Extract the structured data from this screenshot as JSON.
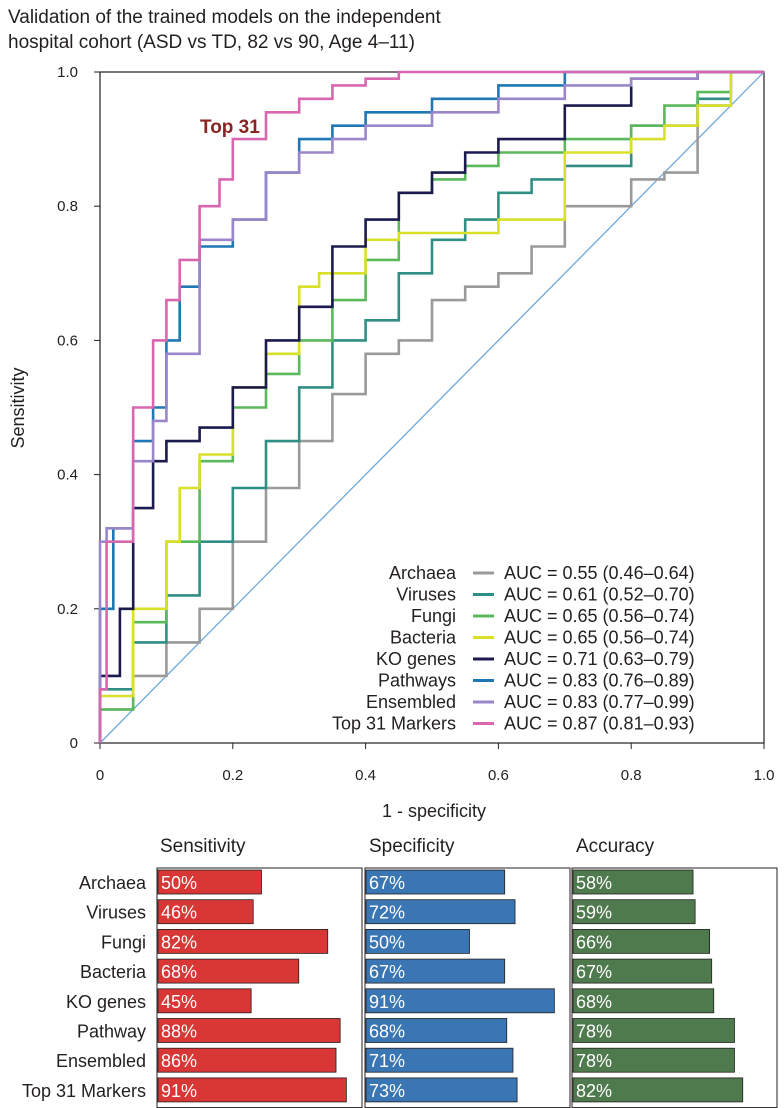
{
  "chart_data": [
    {
      "type": "line",
      "title": "Validation of the trained models on the independent hospital cohort  (ASD vs TD, 82 vs 90, Age 4–11)",
      "title_lines": [
        "Validation of the trained models on the independent",
        "hospital cohort  (ASD vs TD, 82 vs 90, Age 4–11)"
      ],
      "xlabel": "1 - specificity",
      "ylabel": "Sensitivity",
      "xlim": [
        0,
        1
      ],
      "ylim": [
        0,
        1
      ],
      "x_ticks": [
        "0",
        "0.2",
        "0.4",
        "0.6",
        "0.8",
        "1.0"
      ],
      "y_ticks": [
        "0",
        "0.2",
        "0.4",
        "0.6",
        "0.8",
        "1.0"
      ],
      "annotation": "Top 31",
      "reference_line": {
        "x": [
          0,
          1
        ],
        "y": [
          0,
          1
        ],
        "color": "#6fa8dc"
      },
      "series": [
        {
          "name": "Archaea",
          "auc_label": "AUC = 0.55 (0.46–0.64)",
          "color": "#9a9a9a",
          "x": [
            0,
            0.05,
            0.1,
            0.15,
            0.2,
            0.25,
            0.3,
            0.35,
            0.4,
            0.45,
            0.5,
            0.55,
            0.6,
            0.65,
            0.7,
            0.8,
            0.85,
            0.9,
            0.95,
            1.0
          ],
          "y": [
            0,
            0.05,
            0.1,
            0.15,
            0.2,
            0.3,
            0.38,
            0.45,
            0.52,
            0.58,
            0.6,
            0.66,
            0.68,
            0.7,
            0.74,
            0.8,
            0.84,
            0.85,
            0.95,
            1.0
          ]
        },
        {
          "name": "Viruses",
          "auc_label": "AUC = 0.61 (0.52–0.70)",
          "color": "#2f8f84",
          "x": [
            0,
            0.05,
            0.1,
            0.15,
            0.2,
            0.25,
            0.3,
            0.35,
            0.4,
            0.45,
            0.5,
            0.55,
            0.6,
            0.65,
            0.7,
            0.8,
            0.9,
            0.95,
            1.0
          ],
          "y": [
            0,
            0.08,
            0.15,
            0.22,
            0.3,
            0.38,
            0.45,
            0.53,
            0.6,
            0.63,
            0.7,
            0.75,
            0.78,
            0.82,
            0.84,
            0.86,
            0.92,
            0.96,
            1.0
          ]
        },
        {
          "name": "Fungi",
          "auc_label": "AUC = 0.65 (0.56–0.74)",
          "color": "#5bb85d",
          "x": [
            0,
            0.05,
            0.1,
            0.15,
            0.2,
            0.25,
            0.3,
            0.35,
            0.4,
            0.45,
            0.5,
            0.55,
            0.6,
            0.7,
            0.8,
            0.85,
            0.9,
            0.95,
            1.0
          ],
          "y": [
            0,
            0.05,
            0.18,
            0.3,
            0.42,
            0.5,
            0.55,
            0.6,
            0.66,
            0.72,
            0.82,
            0.84,
            0.86,
            0.88,
            0.9,
            0.92,
            0.95,
            0.97,
            1.0
          ]
        },
        {
          "name": "Bacteria",
          "auc_label": "AUC = 0.65 (0.56–0.74)",
          "color": "#d8e02a",
          "x": [
            0,
            0.05,
            0.1,
            0.12,
            0.15,
            0.2,
            0.25,
            0.3,
            0.33,
            0.4,
            0.45,
            0.5,
            0.6,
            0.7,
            0.8,
            0.85,
            0.9,
            0.95,
            1.0
          ],
          "y": [
            0,
            0.07,
            0.2,
            0.3,
            0.38,
            0.43,
            0.53,
            0.58,
            0.68,
            0.7,
            0.75,
            0.76,
            0.76,
            0.78,
            0.88,
            0.9,
            0.92,
            0.95,
            1.0
          ]
        },
        {
          "name": "KO genes",
          "auc_label": "AUC = 0.71 (0.63–0.79)",
          "color": "#1c1a4e",
          "x": [
            0,
            0.03,
            0.05,
            0.08,
            0.1,
            0.15,
            0.2,
            0.25,
            0.3,
            0.35,
            0.4,
            0.45,
            0.5,
            0.55,
            0.6,
            0.7,
            0.8,
            0.9,
            1.0
          ],
          "y": [
            0,
            0.1,
            0.2,
            0.35,
            0.42,
            0.45,
            0.47,
            0.53,
            0.6,
            0.65,
            0.74,
            0.78,
            0.82,
            0.85,
            0.88,
            0.9,
            0.95,
            0.99,
            1.0
          ]
        },
        {
          "name": "Pathways",
          "auc_label": "AUC = 0.83 (0.76–0.89)",
          "color": "#1f77b4",
          "x": [
            0,
            0.02,
            0.05,
            0.08,
            0.1,
            0.12,
            0.15,
            0.2,
            0.25,
            0.3,
            0.35,
            0.4,
            0.5,
            0.6,
            0.7,
            0.8,
            0.9,
            1.0
          ],
          "y": [
            0,
            0.2,
            0.32,
            0.45,
            0.5,
            0.6,
            0.68,
            0.74,
            0.78,
            0.85,
            0.9,
            0.92,
            0.94,
            0.96,
            0.98,
            1.0,
            1.0,
            1.0
          ]
        },
        {
          "name": "Ensembled",
          "auc_label": "AUC = 0.83 (0.77–0.99)",
          "color": "#9b86c9",
          "x": [
            0,
            0.01,
            0.05,
            0.08,
            0.1,
            0.15,
            0.2,
            0.25,
            0.3,
            0.35,
            0.4,
            0.5,
            0.6,
            0.7,
            0.8,
            0.9,
            1.0
          ],
          "y": [
            0,
            0.3,
            0.32,
            0.42,
            0.48,
            0.58,
            0.75,
            0.78,
            0.85,
            0.88,
            0.9,
            0.92,
            0.94,
            0.96,
            0.98,
            0.99,
            1.0
          ]
        },
        {
          "name": "Top 31 Markers",
          "auc_label": "AUC = 0.87 (0.81–0.93)",
          "color": "#d867b0",
          "x": [
            0,
            0.01,
            0.05,
            0.08,
            0.1,
            0.12,
            0.15,
            0.18,
            0.2,
            0.25,
            0.3,
            0.35,
            0.4,
            0.45,
            0.5,
            0.6,
            0.7,
            0.8,
            1.0
          ],
          "y": [
            0,
            0.08,
            0.3,
            0.5,
            0.6,
            0.66,
            0.72,
            0.8,
            0.84,
            0.9,
            0.94,
            0.96,
            0.98,
            0.99,
            1.0,
            1.0,
            1.0,
            1.0,
            1.0
          ]
        }
      ]
    },
    {
      "type": "bar",
      "orientation": "horizontal",
      "categories": [
        "Archaea",
        "Viruses",
        "Fungi",
        "Bacteria",
        "KO genes",
        "Pathway",
        "Ensembled",
        "Top 31 Markers"
      ],
      "series": [
        {
          "name": "Sensitivity",
          "color": "#d93636",
          "values": [
            50,
            46,
            82,
            68,
            45,
            88,
            86,
            91
          ]
        },
        {
          "name": "Specificity",
          "color": "#3a76b3",
          "values": [
            67,
            72,
            50,
            67,
            91,
            68,
            71,
            73
          ]
        },
        {
          "name": "Accuracy",
          "color": "#4f7a4e",
          "values": [
            58,
            59,
            66,
            67,
            68,
            78,
            78,
            82
          ]
        }
      ],
      "value_suffix": "%",
      "xlim": [
        0,
        100
      ]
    }
  ]
}
